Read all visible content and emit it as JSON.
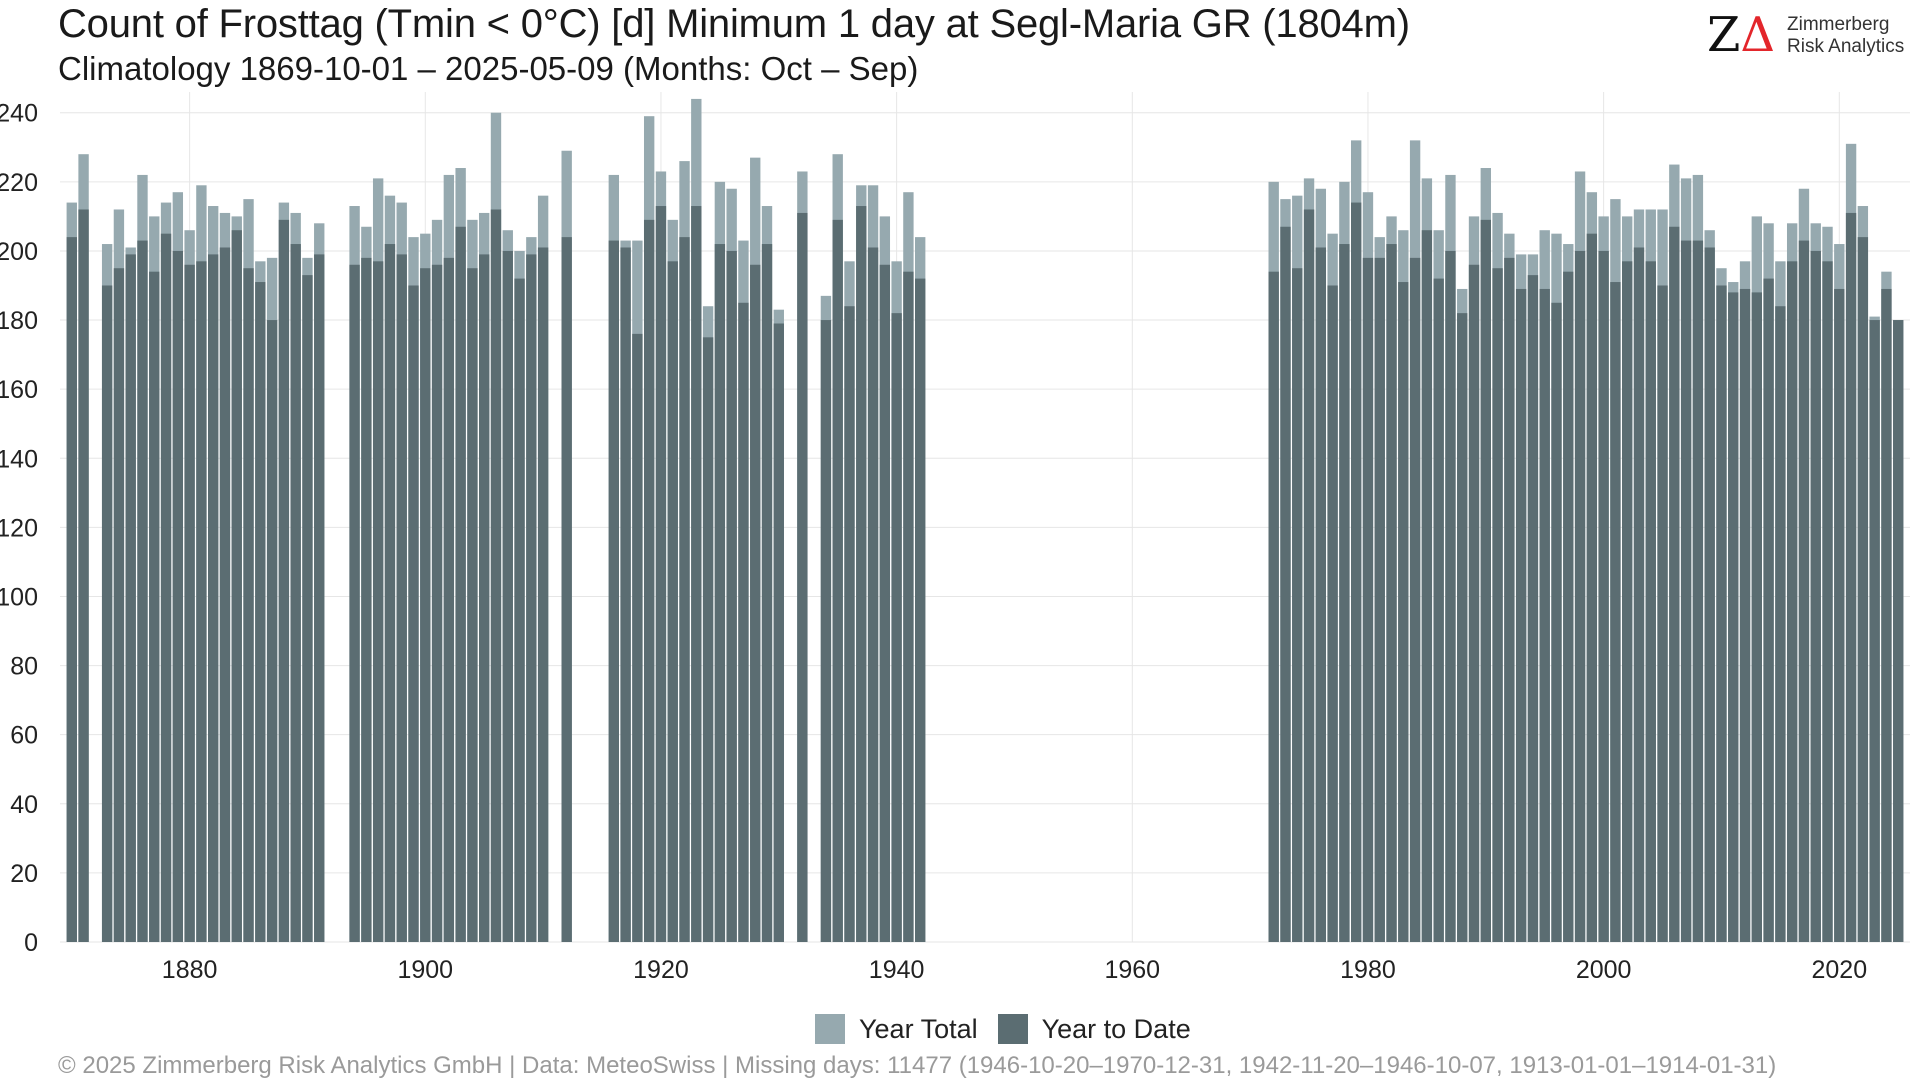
{
  "title": "Count of Frosttag (Tmin < 0°C) [d] Minimum 1 day at Segl-Maria  GR (1804m)",
  "subtitle": "Climatology 1869-10-01 – 2025-05-09 (Months: Oct – Sep)",
  "logo": {
    "mark_z": "Z",
    "mark_delta": "Δ",
    "line1": "Zimmerberg",
    "line2": "Risk Analytics"
  },
  "footer": "©  2025 Zimmerberg Risk Analytics GmbH | Data: MeteoSwiss | Missing days: 11477 (1946-10-20–1970-12-31, 1942-11-20–1946-10-07, 1913-01-01–1914-01-31)",
  "colors": {
    "total": "#96a9af",
    "ytd": "#5b6d72",
    "grid": "#e6e6e6",
    "axis_text": "#222222"
  },
  "chart_data": {
    "type": "bar",
    "stacked_overlay": true,
    "x_ticks": [
      1880,
      1900,
      1920,
      1940,
      1960,
      1980,
      2000,
      2020
    ],
    "y_ticks": [
      0,
      20,
      40,
      60,
      80,
      100,
      120,
      140,
      160,
      180,
      200,
      220,
      240
    ],
    "xlim": [
      1869,
      2026
    ],
    "ylim": [
      0,
      246
    ],
    "grid": true,
    "legend_position": "bottom",
    "series": [
      {
        "name": "Year Total",
        "key": "total"
      },
      {
        "name": "Year to Date",
        "key": "ytd"
      }
    ],
    "data": [
      {
        "year": 1870,
        "total": 214,
        "ytd": 204
      },
      {
        "year": 1871,
        "total": 228,
        "ytd": 212
      },
      {
        "year": 1873,
        "total": 202,
        "ytd": 190
      },
      {
        "year": 1874,
        "total": 212,
        "ytd": 195
      },
      {
        "year": 1875,
        "total": 201,
        "ytd": 199
      },
      {
        "year": 1876,
        "total": 222,
        "ytd": 203
      },
      {
        "year": 1877,
        "total": 210,
        "ytd": 194
      },
      {
        "year": 1878,
        "total": 214,
        "ytd": 205
      },
      {
        "year": 1879,
        "total": 217,
        "ytd": 200
      },
      {
        "year": 1880,
        "total": 206,
        "ytd": 196
      },
      {
        "year": 1881,
        "total": 219,
        "ytd": 197
      },
      {
        "year": 1882,
        "total": 213,
        "ytd": 199
      },
      {
        "year": 1883,
        "total": 211,
        "ytd": 201
      },
      {
        "year": 1884,
        "total": 210,
        "ytd": 206
      },
      {
        "year": 1885,
        "total": 215,
        "ytd": 195
      },
      {
        "year": 1886,
        "total": 197,
        "ytd": 191
      },
      {
        "year": 1887,
        "total": 198,
        "ytd": 180
      },
      {
        "year": 1888,
        "total": 214,
        "ytd": 209
      },
      {
        "year": 1889,
        "total": 211,
        "ytd": 202
      },
      {
        "year": 1890,
        "total": 198,
        "ytd": 193
      },
      {
        "year": 1891,
        "total": 208,
        "ytd": 199
      },
      {
        "year": 1894,
        "total": 213,
        "ytd": 196
      },
      {
        "year": 1895,
        "total": 207,
        "ytd": 198
      },
      {
        "year": 1896,
        "total": 221,
        "ytd": 197
      },
      {
        "year": 1897,
        "total": 216,
        "ytd": 202
      },
      {
        "year": 1898,
        "total": 214,
        "ytd": 199
      },
      {
        "year": 1899,
        "total": 204,
        "ytd": 190
      },
      {
        "year": 1900,
        "total": 205,
        "ytd": 195
      },
      {
        "year": 1901,
        "total": 209,
        "ytd": 196
      },
      {
        "year": 1902,
        "total": 222,
        "ytd": 198
      },
      {
        "year": 1903,
        "total": 224,
        "ytd": 207
      },
      {
        "year": 1904,
        "total": 209,
        "ytd": 195
      },
      {
        "year": 1905,
        "total": 211,
        "ytd": 199
      },
      {
        "year": 1906,
        "total": 240,
        "ytd": 212
      },
      {
        "year": 1907,
        "total": 206,
        "ytd": 200
      },
      {
        "year": 1908,
        "total": 200,
        "ytd": 192
      },
      {
        "year": 1909,
        "total": 204,
        "ytd": 199
      },
      {
        "year": 1910,
        "total": 216,
        "ytd": 201
      },
      {
        "year": 1912,
        "total": 229,
        "ytd": 204
      },
      {
        "year": 1916,
        "total": 222,
        "ytd": 203
      },
      {
        "year": 1917,
        "total": 203,
        "ytd": 201
      },
      {
        "year": 1918,
        "total": 203,
        "ytd": 176
      },
      {
        "year": 1919,
        "total": 239,
        "ytd": 209
      },
      {
        "year": 1920,
        "total": 223,
        "ytd": 213
      },
      {
        "year": 1921,
        "total": 209,
        "ytd": 197
      },
      {
        "year": 1922,
        "total": 226,
        "ytd": 204
      },
      {
        "year": 1923,
        "total": 244,
        "ytd": 213
      },
      {
        "year": 1924,
        "total": 184,
        "ytd": 175
      },
      {
        "year": 1925,
        "total": 220,
        "ytd": 202
      },
      {
        "year": 1926,
        "total": 218,
        "ytd": 200
      },
      {
        "year": 1927,
        "total": 203,
        "ytd": 185
      },
      {
        "year": 1928,
        "total": 227,
        "ytd": 196
      },
      {
        "year": 1929,
        "total": 213,
        "ytd": 202
      },
      {
        "year": 1930,
        "total": 183,
        "ytd": 179
      },
      {
        "year": 1932,
        "total": 223,
        "ytd": 211
      },
      {
        "year": 1934,
        "total": 187,
        "ytd": 180
      },
      {
        "year": 1935,
        "total": 228,
        "ytd": 209
      },
      {
        "year": 1936,
        "total": 197,
        "ytd": 184
      },
      {
        "year": 1937,
        "total": 219,
        "ytd": 213
      },
      {
        "year": 1938,
        "total": 219,
        "ytd": 201
      },
      {
        "year": 1939,
        "total": 210,
        "ytd": 196
      },
      {
        "year": 1940,
        "total": 197,
        "ytd": 182
      },
      {
        "year": 1941,
        "total": 217,
        "ytd": 194
      },
      {
        "year": 1942,
        "total": 204,
        "ytd": 192
      },
      {
        "year": 1972,
        "total": 220,
        "ytd": 194
      },
      {
        "year": 1973,
        "total": 215,
        "ytd": 207
      },
      {
        "year": 1974,
        "total": 216,
        "ytd": 195
      },
      {
        "year": 1975,
        "total": 221,
        "ytd": 212
      },
      {
        "year": 1976,
        "total": 218,
        "ytd": 201
      },
      {
        "year": 1977,
        "total": 205,
        "ytd": 190
      },
      {
        "year": 1978,
        "total": 220,
        "ytd": 202
      },
      {
        "year": 1979,
        "total": 232,
        "ytd": 214
      },
      {
        "year": 1980,
        "total": 217,
        "ytd": 198
      },
      {
        "year": 1981,
        "total": 204,
        "ytd": 198
      },
      {
        "year": 1982,
        "total": 210,
        "ytd": 202
      },
      {
        "year": 1983,
        "total": 206,
        "ytd": 191
      },
      {
        "year": 1984,
        "total": 232,
        "ytd": 198
      },
      {
        "year": 1985,
        "total": 221,
        "ytd": 206
      },
      {
        "year": 1986,
        "total": 206,
        "ytd": 192
      },
      {
        "year": 1987,
        "total": 222,
        "ytd": 200
      },
      {
        "year": 1988,
        "total": 189,
        "ytd": 182
      },
      {
        "year": 1989,
        "total": 210,
        "ytd": 196
      },
      {
        "year": 1990,
        "total": 224,
        "ytd": 209
      },
      {
        "year": 1991,
        "total": 211,
        "ytd": 195
      },
      {
        "year": 1992,
        "total": 205,
        "ytd": 198
      },
      {
        "year": 1993,
        "total": 199,
        "ytd": 189
      },
      {
        "year": 1994,
        "total": 199,
        "ytd": 193
      },
      {
        "year": 1995,
        "total": 206,
        "ytd": 189
      },
      {
        "year": 1996,
        "total": 205,
        "ytd": 185
      },
      {
        "year": 1997,
        "total": 202,
        "ytd": 194
      },
      {
        "year": 1998,
        "total": 223,
        "ytd": 200
      },
      {
        "year": 1999,
        "total": 217,
        "ytd": 205
      },
      {
        "year": 2000,
        "total": 210,
        "ytd": 200
      },
      {
        "year": 2001,
        "total": 215,
        "ytd": 191
      },
      {
        "year": 2002,
        "total": 210,
        "ytd": 197
      },
      {
        "year": 2003,
        "total": 212,
        "ytd": 201
      },
      {
        "year": 2004,
        "total": 212,
        "ytd": 197
      },
      {
        "year": 2005,
        "total": 212,
        "ytd": 190
      },
      {
        "year": 2006,
        "total": 225,
        "ytd": 207
      },
      {
        "year": 2007,
        "total": 221,
        "ytd": 203
      },
      {
        "year": 2008,
        "total": 222,
        "ytd": 203
      },
      {
        "year": 2009,
        "total": 206,
        "ytd": 201
      },
      {
        "year": 2010,
        "total": 195,
        "ytd": 190
      },
      {
        "year": 2011,
        "total": 191,
        "ytd": 188
      },
      {
        "year": 2012,
        "total": 197,
        "ytd": 189
      },
      {
        "year": 2013,
        "total": 210,
        "ytd": 188
      },
      {
        "year": 2014,
        "total": 208,
        "ytd": 192
      },
      {
        "year": 2015,
        "total": 197,
        "ytd": 184
      },
      {
        "year": 2016,
        "total": 208,
        "ytd": 197
      },
      {
        "year": 2017,
        "total": 218,
        "ytd": 203
      },
      {
        "year": 2018,
        "total": 208,
        "ytd": 200
      },
      {
        "year": 2019,
        "total": 207,
        "ytd": 197
      },
      {
        "year": 2020,
        "total": 202,
        "ytd": 189
      },
      {
        "year": 2021,
        "total": 231,
        "ytd": 211
      },
      {
        "year": 2022,
        "total": 213,
        "ytd": 204
      },
      {
        "year": 2023,
        "total": 181,
        "ytd": 180
      },
      {
        "year": 2024,
        "total": 194,
        "ytd": 189
      },
      {
        "year": 2025,
        "total": 180,
        "ytd": 180
      }
    ]
  }
}
